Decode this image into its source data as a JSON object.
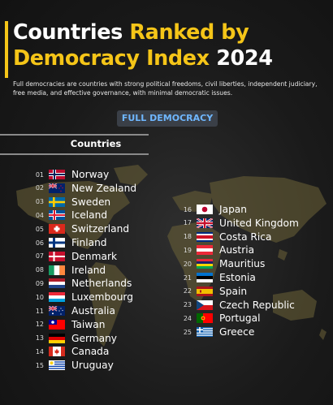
{
  "header": {
    "title_line1_white": "Countries ",
    "title_line1_yellow": "Ranked by",
    "title_line2_yellow": "Democracy Index ",
    "title_line2_white": "2024",
    "subtitle": "Full democracies are countries with strong political freedoms, civil liberties, independent judiciary, free media, and effective governance, with minimal democratic issues."
  },
  "badge": "FULL DEMOCRACY",
  "column_header": "Countries",
  "colors": {
    "accent": "#f5c518",
    "badge_text": "#6fb7ff",
    "badge_bg": "#3a3f47",
    "map": "#6d6338"
  },
  "countries": [
    {
      "rank": "01",
      "name": "Norway",
      "flag": "norway-flag"
    },
    {
      "rank": "02",
      "name": "New Zealand",
      "flag": "new-zealand-flag"
    },
    {
      "rank": "03",
      "name": "Sweden",
      "flag": "sweden-flag"
    },
    {
      "rank": "04",
      "name": "Iceland",
      "flag": "iceland-flag"
    },
    {
      "rank": "05",
      "name": "Switzerland",
      "flag": "switzerland-flag"
    },
    {
      "rank": "06",
      "name": "Finland",
      "flag": "finland-flag"
    },
    {
      "rank": "07",
      "name": "Denmark",
      "flag": "denmark-flag"
    },
    {
      "rank": "08",
      "name": "Ireland",
      "flag": "ireland-flag"
    },
    {
      "rank": "09",
      "name": "Netherlands",
      "flag": "netherlands-flag"
    },
    {
      "rank": "10",
      "name": "Luxembourg",
      "flag": "luxembourg-flag"
    },
    {
      "rank": "11",
      "name": "Australia",
      "flag": "australia-flag"
    },
    {
      "rank": "12",
      "name": "Taiwan",
      "flag": "taiwan-flag"
    },
    {
      "rank": "13",
      "name": "Germany",
      "flag": "germany-flag"
    },
    {
      "rank": "14",
      "name": "Canada",
      "flag": "canada-flag"
    },
    {
      "rank": "15",
      "name": "Uruguay",
      "flag": "uruguay-flag"
    },
    {
      "rank": "16",
      "name": "Japan",
      "flag": "japan-flag"
    },
    {
      "rank": "17",
      "name": "United Kingdom",
      "flag": "united-kingdom-flag"
    },
    {
      "rank": "18",
      "name": "Costa Rica",
      "flag": "costa-rica-flag"
    },
    {
      "rank": "19",
      "name": "Austria",
      "flag": "austria-flag"
    },
    {
      "rank": "20",
      "name": "Mauritius",
      "flag": "mauritius-flag"
    },
    {
      "rank": "21",
      "name": "Estonia",
      "flag": "estonia-flag"
    },
    {
      "rank": "22",
      "name": "Spain",
      "flag": "spain-flag"
    },
    {
      "rank": "23",
      "name": "Czech Republic",
      "flag": "czech-republic-flag"
    },
    {
      "rank": "24",
      "name": "Portugal",
      "flag": "portugal-flag"
    },
    {
      "rank": "25",
      "name": "Greece",
      "flag": "greece-flag"
    }
  ]
}
